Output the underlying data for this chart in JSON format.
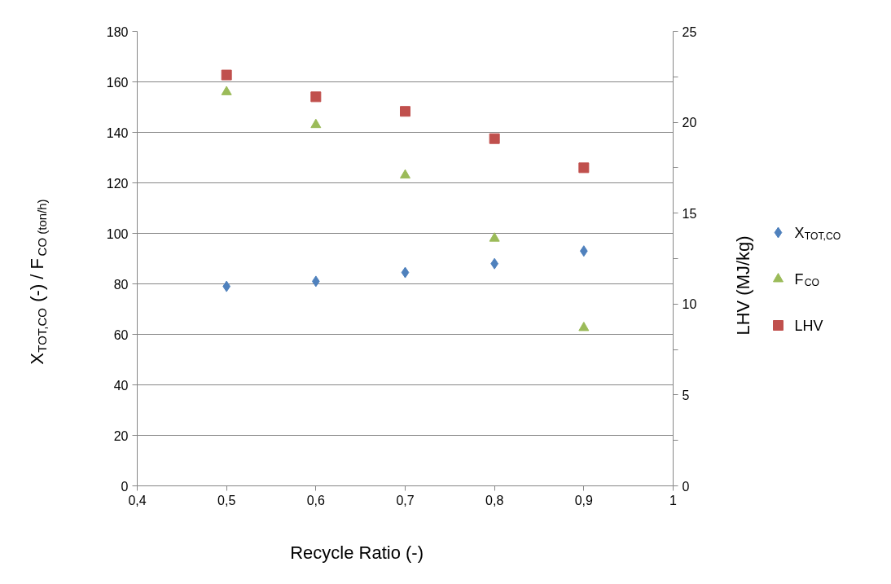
{
  "chart_data": {
    "type": "scatter",
    "xlabel": "Recycle Ratio (-)",
    "ylabel": "X$_{TOT,CO}$ (-) / F$_{CO (ton/h)}$",
    "y2label": "LHV  (MJ/kg)",
    "x": [
      0.5,
      0.6,
      0.7,
      0.8,
      0.9
    ],
    "series": [
      {
        "name": "X$_{TOT,CO}$",
        "color": "#4f81bd",
        "marker": "diamond",
        "values": [
          79,
          81,
          84.5,
          88,
          93
        ]
      },
      {
        "name": "F$_{CO}$",
        "color": "#9bbb59",
        "marker": "triangle",
        "values": [
          156,
          143,
          123,
          98,
          62.6
        ]
      },
      {
        "name": "LHV",
        "color": "#c0504d",
        "marker": "square",
        "axis": "y2",
        "values": [
          22.6,
          21.4,
          20.6,
          19.1,
          17.5
        ]
      }
    ],
    "xlim": [
      0.4,
      1
    ],
    "ylim": [
      0,
      180
    ],
    "y2lim": [
      0,
      25
    ],
    "xticks": [
      {
        "value": 0.4,
        "label": "0,4"
      },
      {
        "value": 0.5,
        "label": "0,5"
      },
      {
        "value": 0.6,
        "label": "0,6"
      },
      {
        "value": 0.7,
        "label": "0,7"
      },
      {
        "value": 0.8,
        "label": "0,8"
      },
      {
        "value": 0.9,
        "label": "0,9"
      },
      1
    ],
    "yticks": [
      0,
      20,
      40,
      60,
      80,
      100,
      120,
      140,
      160,
      180
    ],
    "y2ticks": [
      0,
      {
        "value": 2.5,
        "label": null
      },
      5,
      {
        "value": 7.5,
        "label": null
      },
      10,
      {
        "value": 12.5,
        "label": null
      },
      15,
      {
        "value": 17.5,
        "label": null
      },
      20,
      {
        "value": 22.5,
        "label": null
      },
      25
    ],
    "grid": "y",
    "legend": "right"
  }
}
